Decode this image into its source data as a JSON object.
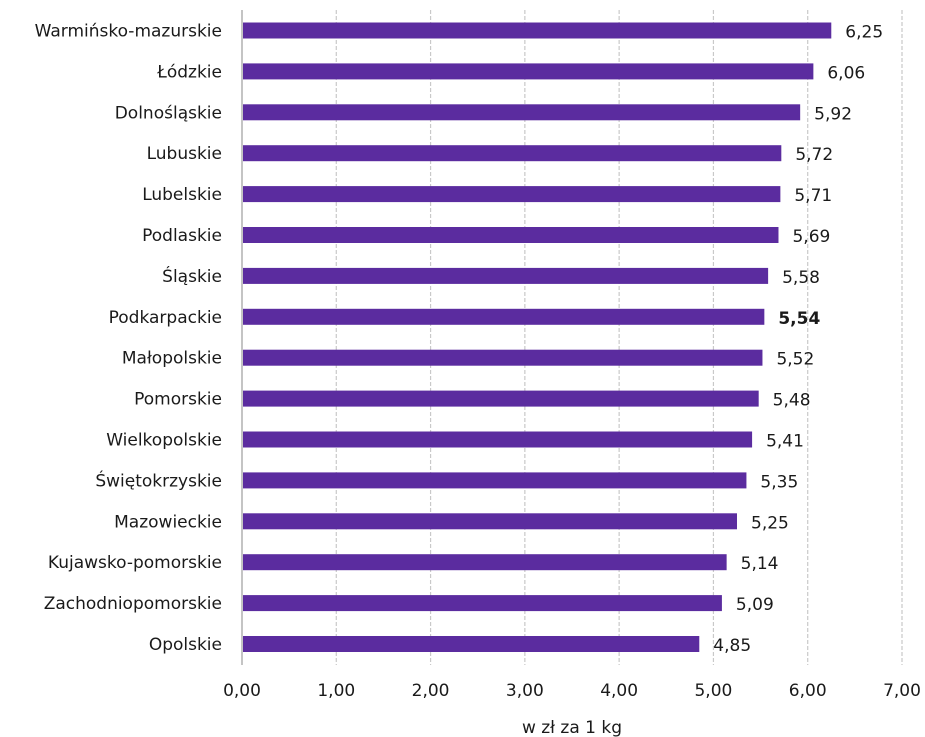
{
  "chart_data": {
    "type": "bar",
    "orientation": "horizontal",
    "categories": [
      "Warmińsko-mazurskie",
      "Łódzkie",
      "Dolnośląskie",
      "Lubuskie",
      "Lubelskie",
      "Podlaskie",
      "Śląskie",
      "Podkarpackie",
      "Małopolskie",
      "Pomorskie",
      "Wielkopolskie",
      "Świętokrzyskie",
      "Mazowieckie",
      "Kujawsko-pomorskie",
      "Zachodniopomorskie",
      "Opolskie"
    ],
    "values": [
      6.25,
      6.06,
      5.92,
      5.72,
      5.71,
      5.69,
      5.58,
      5.54,
      5.52,
      5.48,
      5.41,
      5.35,
      5.25,
      5.14,
      5.09,
      4.85
    ],
    "value_labels": [
      "6,25",
      "6,06",
      "5,92",
      "5,72",
      "5,71",
      "5,69",
      "5,58",
      "5,54",
      "5,52",
      "5,48",
      "5,41",
      "5,35",
      "5,25",
      "5,14",
      "5,09",
      "4,85"
    ],
    "highlighted_category": "Podkarpackie",
    "xlim": [
      0,
      7
    ],
    "x_ticks": [
      0,
      1,
      2,
      3,
      4,
      5,
      6,
      7
    ],
    "x_tick_labels": [
      "0,00",
      "1,00",
      "2,00",
      "3,00",
      "4,00",
      "5,00",
      "6,00",
      "7,00"
    ],
    "xlabel": "w zł za 1 kg",
    "ylabel": "",
    "title": "",
    "grid": "vertical dashed",
    "legend": "none",
    "bar_color": "#5b2c9f"
  }
}
